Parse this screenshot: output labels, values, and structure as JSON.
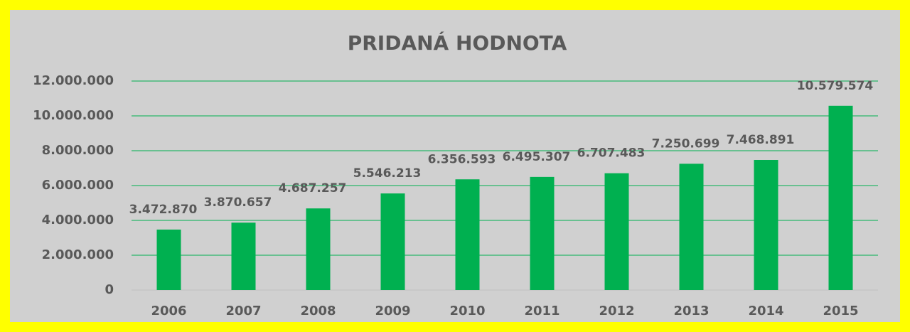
{
  "chart_data": {
    "type": "bar",
    "title": "PRIDANÁ HODNOTA",
    "categories": [
      "2006",
      "2007",
      "2008",
      "2009",
      "2010",
      "2011",
      "2012",
      "2013",
      "2014",
      "2015"
    ],
    "values": [
      3472870,
      3870657,
      4687257,
      5546213,
      6356593,
      6495307,
      6707483,
      7250699,
      7468891,
      10579574
    ],
    "value_labels": [
      "3.472.870",
      "3.870.657",
      "4.687.257",
      "5.546.213",
      "6.356.593",
      "6.495.307",
      "6.707.483",
      "7.250.699",
      "7.468.891",
      "10.579.574"
    ],
    "color": "#00b050",
    "ylim": [
      0,
      12000000
    ],
    "yticks": [
      0,
      {
        "value": 2000000,
        "label": "2.000.000"
      },
      {
        "value": 4000000,
        "label": "4.000.000"
      },
      {
        "value": 6000000,
        "label": "6.000.000"
      },
      {
        "value": 8000000,
        "label": "8.000.000"
      },
      {
        "value": 10000000,
        "label": "10.000.000"
      },
      {
        "value": 12000000,
        "label": "12.000.000"
      }
    ],
    "grid": true
  }
}
